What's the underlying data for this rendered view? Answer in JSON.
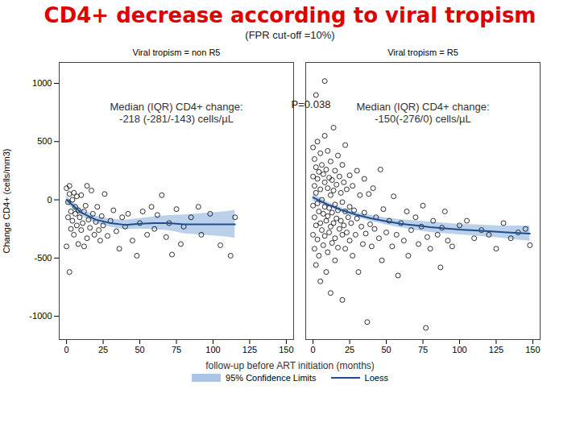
{
  "chart_data": {
    "type": "scatter",
    "title": "CD4+ decrease according to viral tropism",
    "subtitle": "(FPR cut-off =10%)",
    "x_label": "follow-up before ART initiation (months)",
    "y_label": "Change CD4+ (cells/mm3)",
    "annotation": "P=0.038",
    "xlim": [
      -5,
      155
    ],
    "xticks": [
      0,
      25,
      50,
      75,
      100,
      125,
      150
    ],
    "ylim": [
      -1200,
      1180
    ],
    "yticks": [
      -1000,
      -500,
      0,
      500,
      1000
    ],
    "marker": "circle",
    "series": [
      {
        "name": "95% Confidence Limits",
        "type": "area",
        "color": "#aac4e6"
      },
      {
        "name": "Loess",
        "type": "line",
        "color": "#1f4e8c"
      }
    ],
    "panels": [
      {
        "name": "Viral tropism = non R5",
        "annotation": "Median (IQR) CD4+ change:\n-218 (-281/-143) cells/µL",
        "points": {
          "x": [
            0,
            1,
            1,
            2,
            2,
            3,
            3,
            4,
            4,
            5,
            5,
            6,
            6,
            7,
            7,
            8,
            8,
            9,
            10,
            10,
            11,
            12,
            12,
            13,
            14,
            15,
            16,
            17,
            18,
            19,
            20,
            21,
            22,
            23,
            24,
            25,
            26,
            28,
            30,
            32,
            34,
            36,
            38,
            40,
            42,
            45,
            48,
            50,
            52,
            55,
            58,
            60,
            62,
            65,
            68,
            70,
            72,
            75,
            78,
            80,
            85,
            90,
            92,
            98,
            105,
            112,
            115,
            2,
            0,
            14
          ],
          "y": [
            100,
            -20,
            -150,
            120,
            50,
            -100,
            -250,
            0,
            -180,
            60,
            -300,
            -60,
            -120,
            30,
            -220,
            -90,
            -380,
            -150,
            40,
            -260,
            -200,
            -100,
            -400,
            -50,
            -330,
            -170,
            -240,
            80,
            -120,
            -300,
            -190,
            -60,
            -260,
            -350,
            -140,
            -220,
            50,
            -310,
            -180,
            -90,
            -270,
            -420,
            -150,
            -230,
            -120,
            -350,
            -480,
            -200,
            -100,
            -300,
            -60,
            -250,
            -130,
            40,
            -320,
            -200,
            -470,
            -80,
            -380,
            -230,
            -150,
            -60,
            -300,
            -120,
            -390,
            -480,
            -150,
            -620,
            -400,
            120
          ]
        },
        "loess": {
          "x": [
            0,
            10,
            20,
            30,
            40,
            50,
            60,
            70,
            80,
            90,
            100,
            110,
            115
          ],
          "values": [
            0,
            -110,
            -170,
            -200,
            -215,
            -205,
            -200,
            -200,
            -210,
            -210,
            -210,
            -210,
            -210
          ],
          "lower": [
            -30,
            -140,
            -200,
            -235,
            -255,
            -250,
            -255,
            -265,
            -290,
            -300,
            -310,
            -320,
            -330
          ],
          "upper": [
            30,
            -80,
            -140,
            -165,
            -175,
            -160,
            -145,
            -135,
            -130,
            -120,
            -110,
            -100,
            -90
          ]
        }
      },
      {
        "name": "Viral tropism = R5",
        "annotation": "Median (IQR) CD4+ change:\n-150(-276/0) cells/µL",
        "points": {
          "x": [
            0,
            0,
            0,
            0,
            1,
            1,
            1,
            1,
            2,
            2,
            2,
            2,
            3,
            3,
            3,
            3,
            4,
            4,
            4,
            5,
            5,
            5,
            5,
            6,
            6,
            6,
            7,
            7,
            7,
            8,
            8,
            8,
            8,
            9,
            9,
            9,
            10,
            10,
            10,
            10,
            11,
            11,
            11,
            12,
            12,
            12,
            12,
            13,
            13,
            13,
            14,
            14,
            14,
            15,
            15,
            15,
            15,
            16,
            16,
            17,
            17,
            17,
            18,
            18,
            19,
            19,
            20,
            20,
            20,
            20,
            21,
            21,
            22,
            22,
            22,
            23,
            23,
            24,
            25,
            25,
            25,
            26,
            27,
            27,
            28,
            29,
            30,
            30,
            31,
            32,
            33,
            34,
            35,
            35,
            36,
            37,
            38,
            39,
            40,
            41,
            42,
            43,
            45,
            46,
            47,
            48,
            50,
            52,
            54,
            55,
            57,
            58,
            60,
            62,
            64,
            65,
            67,
            70,
            72,
            74,
            75,
            77,
            78,
            80,
            82,
            85,
            87,
            88,
            90,
            92,
            95,
            100,
            105,
            110,
            115,
            120,
            125,
            130,
            135,
            140,
            145,
            148,
            8,
            2
          ],
          "y": [
            450,
            200,
            -50,
            -300,
            350,
            120,
            -150,
            -420,
            280,
            60,
            -220,
            -560,
            500,
            180,
            -30,
            -340,
            240,
            -100,
            -480,
            400,
            90,
            -200,
            -700,
            300,
            0,
            -260,
            220,
            -120,
            -390,
            550,
            150,
            -60,
            -310,
            260,
            -180,
            -620,
            420,
            100,
            -140,
            -450,
            190,
            -70,
            -280,
            330,
            40,
            -230,
            -800,
            170,
            -110,
            -370,
            620,
            80,
            -200,
            250,
            -40,
            -330,
            -520,
            130,
            -160,
            380,
            -90,
            -410,
            200,
            -250,
            60,
            -180,
            300,
            -20,
            -300,
            -860,
            150,
            -220,
            470,
            -100,
            -420,
            90,
            -280,
            -150,
            210,
            -60,
            -350,
            -200,
            120,
            -480,
            -90,
            -300,
            250,
            -160,
            -620,
            40,
            -230,
            -380,
            180,
            -110,
            -290,
            -1050,
            50,
            -210,
            -400,
            100,
            -250,
            -150,
            -330,
            260,
            -520,
            -80,
            -280,
            -180,
            -400,
            30,
            -300,
            -650,
            -200,
            -350,
            -100,
            -480,
            -260,
            -150,
            -380,
            -230,
            -50,
            -1100,
            -320,
            -420,
            -180,
            -300,
            -580,
            -240,
            -100,
            -350,
            -400,
            -220,
            -180,
            -330,
            -260,
            -300,
            -420,
            -200,
            -330,
            -280,
            -250,
            -390,
            1020,
            900
          ]
        },
        "loess": {
          "x": [
            0,
            10,
            20,
            30,
            40,
            50,
            60,
            70,
            80,
            90,
            100,
            110,
            120,
            130,
            140,
            148
          ],
          "values": [
            20,
            -40,
            -90,
            -130,
            -160,
            -185,
            -205,
            -220,
            -235,
            -245,
            -255,
            -262,
            -270,
            -278,
            -285,
            -290
          ],
          "lower": [
            -10,
            -60,
            -110,
            -150,
            -185,
            -215,
            -240,
            -260,
            -280,
            -290,
            -300,
            -310,
            -320,
            -330,
            -345,
            -355
          ],
          "upper": [
            50,
            -20,
            -70,
            -110,
            -135,
            -155,
            -170,
            -180,
            -190,
            -200,
            -210,
            -214,
            -220,
            -226,
            -225,
            -225
          ]
        }
      }
    ]
  }
}
